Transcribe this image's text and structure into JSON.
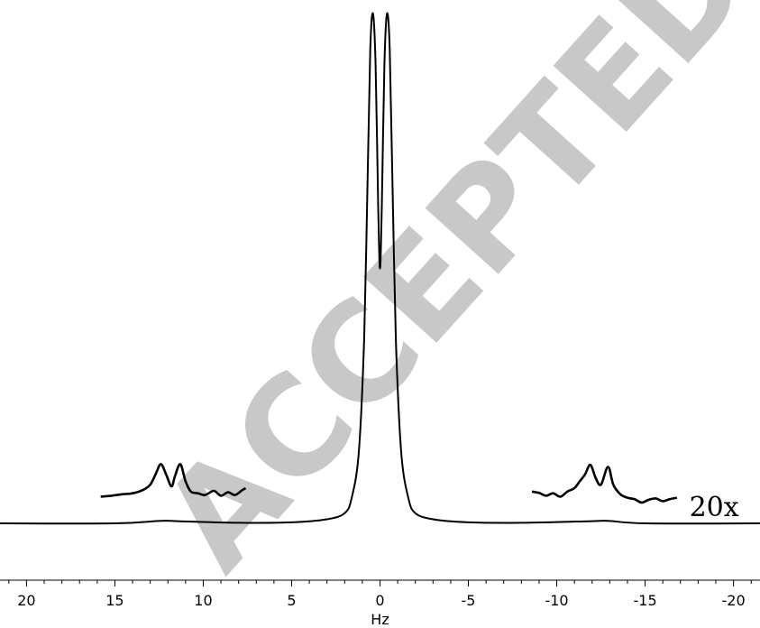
{
  "chart_data": {
    "type": "line",
    "title": "",
    "xlabel": "Hz",
    "ylabel": "",
    "x_reversed": true,
    "xlim": [
      21.5,
      -21.5
    ],
    "ylim": [
      0,
      1.0
    ],
    "grid": false,
    "legend": "none",
    "x_ticks": [
      20,
      15,
      10,
      5,
      0,
      -5,
      -10,
      -15,
      -20
    ],
    "x_tick_labels": [
      "20",
      "15",
      "10",
      "5",
      "0",
      "-5",
      "-10",
      "-15",
      "-20"
    ],
    "annotation": "20x",
    "watermark": "ACCEPTED MANUSCRIPT",
    "series": [
      {
        "role": "main spectrum",
        "x": [
          21.5,
          15,
          12.4,
          11.3,
          8,
          5,
          3,
          2,
          1.6,
          1.2,
          0.9,
          0.7,
          0.55,
          0.4,
          0.25,
          0.1,
          0,
          -0.1,
          -0.25,
          -0.4,
          -0.55,
          -0.7,
          -0.9,
          -1.2,
          -1.6,
          -2,
          -3,
          -5,
          -8,
          -11.8,
          -12.9,
          -15,
          -21.5
        ],
        "y": [
          0.0,
          0.0,
          0.005,
          0.004,
          0.001,
          0.002,
          0.008,
          0.02,
          0.05,
          0.14,
          0.36,
          0.68,
          0.93,
          1.0,
          0.9,
          0.62,
          0.5,
          0.62,
          0.9,
          1.0,
          0.93,
          0.68,
          0.36,
          0.14,
          0.05,
          0.02,
          0.008,
          0.002,
          0.001,
          0.004,
          0.005,
          0.0,
          0.0
        ]
      },
      {
        "role": "satellite region 20x",
        "x": [
          15.8,
          15.2,
          14.6,
          14.0,
          13.4,
          13.0,
          12.7,
          12.4,
          12.1,
          11.8,
          11.6,
          11.3,
          11.0,
          10.7,
          10.3,
          9.9,
          9.4,
          9.0,
          8.6,
          8.2,
          7.8,
          7.6
        ],
        "y": [
          0.025,
          0.028,
          0.032,
          0.035,
          0.045,
          0.06,
          0.09,
          0.12,
          0.09,
          0.055,
          0.085,
          0.12,
          0.07,
          0.04,
          0.035,
          0.03,
          0.042,
          0.028,
          0.038,
          0.03,
          0.044,
          0.05
        ]
      },
      {
        "role": "satellite region 20x",
        "x": [
          -8.6,
          -9.0,
          -9.4,
          -9.8,
          -10.2,
          -10.6,
          -11.0,
          -11.3,
          -11.6,
          -11.9,
          -12.2,
          -12.5,
          -12.9,
          -13.2,
          -13.6,
          -14.0,
          -14.4,
          -14.8,
          -15.2,
          -15.6,
          -16.0,
          -16.4,
          -16.8
        ],
        "y": [
          0.04,
          0.036,
          0.028,
          0.035,
          0.025,
          0.04,
          0.05,
          0.07,
          0.09,
          0.118,
          0.08,
          0.06,
          0.112,
          0.06,
          0.032,
          0.022,
          0.018,
          0.008,
          0.016,
          0.02,
          0.012,
          0.018,
          0.022
        ]
      }
    ]
  }
}
